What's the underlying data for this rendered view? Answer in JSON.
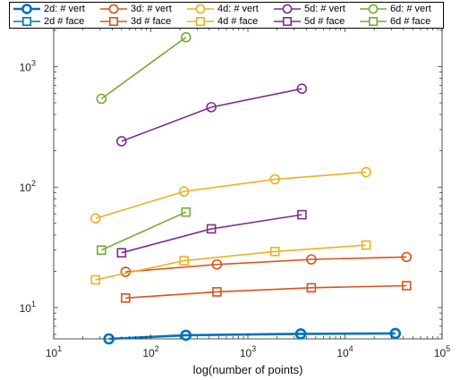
{
  "chart_data": {
    "type": "line",
    "title": "",
    "xlabel": "log(number of points)",
    "ylabel": "",
    "xscale": "log",
    "yscale": "log",
    "xlim": [
      10,
      100000
    ],
    "ylim": [
      5.5,
      2100
    ],
    "grid": false,
    "legend_placement": "top",
    "x_ticks": [
      {
        "base": "10",
        "exp": "1"
      },
      {
        "base": "10",
        "exp": "2"
      },
      {
        "base": "10",
        "exp": "3"
      },
      {
        "base": "10",
        "exp": "4"
      },
      {
        "base": "10",
        "exp": "5"
      }
    ],
    "y_ticks": [
      {
        "base": "10",
        "exp": "1"
      },
      {
        "base": "10",
        "exp": "2"
      },
      {
        "base": "10",
        "exp": "3"
      }
    ],
    "series": [
      {
        "name": "2d: # vert",
        "marker": "circle",
        "color": "#0072BD",
        "line_width": 2.6,
        "x": [
          37,
          230,
          3500,
          33000
        ],
        "y": [
          5.5,
          5.9,
          6.05,
          6.1
        ]
      },
      {
        "name": "2d  # face",
        "marker": "square",
        "color": "#0072BD",
        "line_width": 1.6,
        "x": [],
        "y": []
      },
      {
        "name": "3d: # vert",
        "marker": "circle",
        "color": "#D95319",
        "line_width": 1.6,
        "x": [
          55,
          480,
          4500,
          43000
        ],
        "y": [
          19.8,
          22.8,
          25.1,
          26.3
        ]
      },
      {
        "name": "3d  # face",
        "marker": "square",
        "color": "#D95319",
        "line_width": 1.6,
        "x": [
          55,
          480,
          4500,
          43000
        ],
        "y": [
          12.0,
          13.5,
          14.6,
          15.2
        ]
      },
      {
        "name": "4d: # vert",
        "marker": "circle",
        "color": "#EDB120",
        "line_width": 1.6,
        "x": [
          27,
          220,
          1900,
          16500
        ],
        "y": [
          55,
          92,
          116,
          133
        ]
      },
      {
        "name": "4d  # face",
        "marker": "square",
        "color": "#EDB120",
        "line_width": 1.6,
        "x": [
          27,
          220,
          1900,
          16500
        ],
        "y": [
          17.0,
          24.5,
          29.2,
          33.0
        ]
      },
      {
        "name": "5d: # vert",
        "marker": "circle",
        "color": "#7E2F8E",
        "line_width": 1.6,
        "x": [
          50,
          420,
          3600
        ],
        "y": [
          240,
          460,
          655
        ]
      },
      {
        "name": "5d  # face",
        "marker": "square",
        "color": "#7E2F8E",
        "line_width": 1.6,
        "x": [
          50,
          420,
          3600
        ],
        "y": [
          28.5,
          45.0,
          59.0
        ]
      },
      {
        "name": "6d: # vert",
        "marker": "circle",
        "color": "#77AC30",
        "line_width": 1.6,
        "x": [
          31,
          230
        ],
        "y": [
          540,
          1750
        ]
      },
      {
        "name": "6d  # face",
        "marker": "square",
        "color": "#77AC30",
        "line_width": 1.6,
        "x": [
          31,
          230
        ],
        "y": [
          30.0,
          62.0
        ]
      }
    ]
  }
}
